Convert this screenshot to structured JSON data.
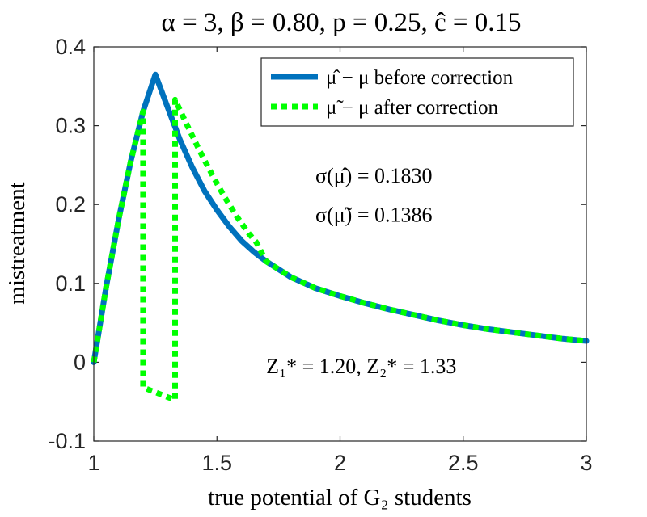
{
  "chart_data": {
    "type": "line",
    "title": "α = 3, β = 0.80, p = 0.25, ĉ = 0.15",
    "xlabel": "true potential of G₂ students",
    "ylabel": "mistreatment",
    "xlim": [
      1,
      3
    ],
    "ylim": [
      -0.1,
      0.4
    ],
    "x_ticks": [
      1,
      1.5,
      2,
      2.5,
      3
    ],
    "x_tick_labels": [
      "1",
      "1.5",
      "2",
      "2.5",
      "3"
    ],
    "y_ticks": [
      -0.1,
      0,
      0.1,
      0.2,
      0.3,
      0.4
    ],
    "y_tick_labels": [
      "-0.1",
      "0",
      "0.1",
      "0.2",
      "0.3",
      "0.4"
    ],
    "grid": false,
    "legend_position": "top-right",
    "series": [
      {
        "name": "μ̂ − μ before correction",
        "color": "#0072BD",
        "style": "solid",
        "x": [
          1.0,
          1.05,
          1.1,
          1.15,
          1.2,
          1.25,
          1.3,
          1.35,
          1.4,
          1.45,
          1.5,
          1.55,
          1.6,
          1.65,
          1.7,
          1.8,
          1.9,
          2.0,
          2.1,
          2.2,
          2.3,
          2.4,
          2.5,
          2.6,
          2.7,
          2.8,
          2.9,
          3.0
        ],
        "y": [
          0.0,
          0.095,
          0.18,
          0.255,
          0.318,
          0.365,
          0.323,
          0.282,
          0.247,
          0.217,
          0.193,
          0.172,
          0.154,
          0.14,
          0.128,
          0.108,
          0.094,
          0.084,
          0.075,
          0.067,
          0.06,
          0.053,
          0.047,
          0.042,
          0.038,
          0.034,
          0.03,
          0.027
        ]
      },
      {
        "name": "μ̃ − μ after correction",
        "color": "#00FF00",
        "style": "dotted",
        "x": [
          1.0,
          1.05,
          1.1,
          1.15,
          1.2,
          1.2,
          1.33,
          1.33,
          1.38,
          1.43,
          1.48,
          1.53,
          1.58,
          1.63,
          1.66,
          1.7,
          1.8,
          1.9,
          2.0,
          2.1,
          2.2,
          2.3,
          2.4,
          2.5,
          2.6,
          2.7,
          2.8,
          2.9,
          3.0
        ],
        "y": [
          0.0,
          0.095,
          0.18,
          0.255,
          0.318,
          -0.032,
          -0.048,
          0.333,
          0.3,
          0.268,
          0.238,
          0.21,
          0.185,
          0.163,
          0.152,
          0.128,
          0.108,
          0.094,
          0.084,
          0.075,
          0.067,
          0.06,
          0.053,
          0.047,
          0.042,
          0.038,
          0.034,
          0.03,
          0.027
        ]
      }
    ],
    "annotations": [
      {
        "text": "σ(μ̂) = 0.1830",
        "x": 1.9,
        "y": 0.228
      },
      {
        "text": "σ(μ̃) = 0.1386",
        "x": 1.9,
        "y": 0.178
      },
      {
        "text": "Z₁* = 1.20, Z₂* = 1.33",
        "x": 1.7,
        "y": -0.014
      }
    ]
  }
}
